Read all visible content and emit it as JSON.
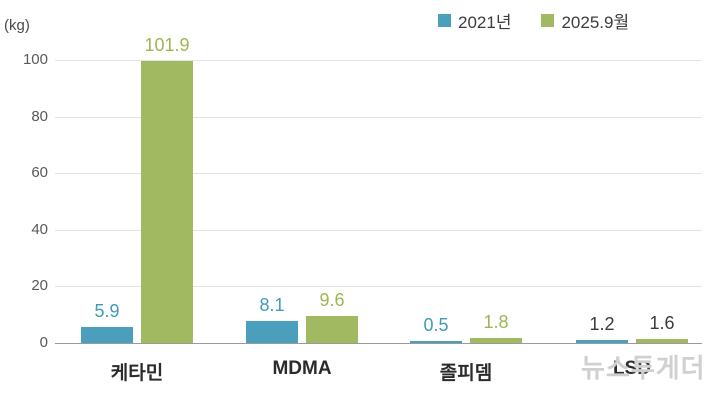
{
  "header": {
    "unit_label": "(kg)"
  },
  "legend": {
    "items": [
      {
        "label": "2021년",
        "color": "#4a9fbc"
      },
      {
        "label": "2025.9월",
        "color": "#a1ba62"
      }
    ]
  },
  "watermark": "뉴스투게더",
  "chart_data": {
    "type": "bar",
    "title": "",
    "ylabel": "(kg)",
    "ylim": [
      0,
      102
    ],
    "yticks": [
      0,
      20,
      40,
      60,
      80,
      100
    ],
    "grid": true,
    "legend_position": "top-right",
    "categories": [
      "케타민",
      "MDMA",
      "졸피뎀",
      "LSD"
    ],
    "series": [
      {
        "name": "2021년",
        "color": "#4a9fbc",
        "values": [
          5.9,
          8.1,
          0.5,
          1.2
        ]
      },
      {
        "name": "2025.9월",
        "color": "#a1ba62",
        "values": [
          101.9,
          9.6,
          1.8,
          1.6
        ]
      }
    ],
    "value_labels": [
      [
        "5.9",
        "101.9"
      ],
      [
        "8.1",
        "9.6"
      ],
      [
        "0.5",
        "1.8"
      ],
      [
        "1.2",
        "1.6"
      ]
    ],
    "value_label_colors": [
      [
        "#3e9cb9",
        "#9cb653"
      ],
      [
        "#3e9cb9",
        "#9cb653"
      ],
      [
        "#3e9cb9",
        "#9cb653"
      ],
      [
        "#3b3b3b",
        "#3b3b3b"
      ]
    ]
  }
}
